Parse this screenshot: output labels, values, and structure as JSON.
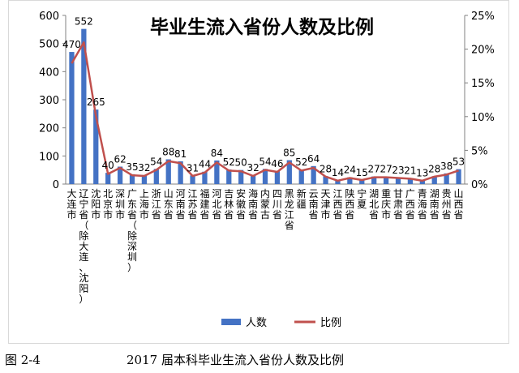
{
  "caption": {
    "figure_no": "图 2-4",
    "text": "2017 届本科毕业生流入省份人数及比例"
  },
  "chart_data": {
    "type": "bar",
    "title": "毕业生流入省份人数及比例",
    "xlabel": "",
    "ylabel": "",
    "ylim": [
      0,
      600
    ],
    "y_ticks": [
      "0",
      "100",
      "200",
      "300",
      "400",
      "500",
      "600"
    ],
    "y2lim": [
      0,
      25
    ],
    "y2_ticks": [
      "0%",
      "5%",
      "10%",
      "15%",
      "20%",
      "25%"
    ],
    "grid": false,
    "legend_position": "bottom",
    "categories": [
      "大连市",
      "辽宁省（除大连、沈阳）",
      "沈阳市",
      "北京市",
      "深圳市",
      "广东省（除深圳）",
      "上海市",
      "浙江省",
      "山东省",
      "河南省",
      "江苏省",
      "福建省",
      "河北省",
      "吉林省",
      "安徽省",
      "海南省",
      "内蒙古",
      "四川省",
      "黑龙江省",
      "新疆",
      "云南省",
      "天津市",
      "江西省",
      "陕西省",
      "宁夏",
      "湖北省",
      "重庆市",
      "甘肃省",
      "广西省",
      "青海省",
      "湖南省",
      "贵州省",
      "山西省"
    ],
    "category_display": [
      [
        "大",
        "连",
        "市"
      ],
      [
        "辽",
        "宁",
        "省",
        "（",
        "除",
        "大",
        "连",
        "、",
        "沈",
        "阳",
        "）"
      ],
      [
        "沈",
        "阳",
        "市"
      ],
      [
        "北",
        "京",
        "市"
      ],
      [
        "深",
        "圳",
        "市"
      ],
      [
        "广",
        "东",
        "省",
        "（",
        "除",
        "深",
        "圳",
        "）"
      ],
      [
        "上",
        "海",
        "市"
      ],
      [
        "浙",
        "江",
        "省"
      ],
      [
        "山",
        "东",
        "省"
      ],
      [
        "河",
        "南",
        "省"
      ],
      [
        "江",
        "苏",
        "省"
      ],
      [
        "福",
        "建",
        "省"
      ],
      [
        "河",
        "北",
        "省"
      ],
      [
        "吉",
        "林",
        "省"
      ],
      [
        "安",
        "徽",
        "省"
      ],
      [
        "海",
        "南",
        "省"
      ],
      [
        "内",
        "蒙",
        "古"
      ],
      [
        "四",
        "川",
        "省"
      ],
      [
        "黑",
        "龙",
        "江",
        "省"
      ],
      [
        "新",
        "疆"
      ],
      [
        "云",
        "南",
        "省"
      ],
      [
        "天",
        "津",
        "市"
      ],
      [
        "江",
        "西",
        "省"
      ],
      [
        "陕",
        "西",
        "省"
      ],
      [
        "宁",
        "夏"
      ],
      [
        "湖",
        "北",
        "省"
      ],
      [
        "重",
        "庆",
        "市"
      ],
      [
        "甘",
        "肃",
        "省"
      ],
      [
        "广",
        "西",
        "省"
      ],
      [
        "青",
        "海",
        "省"
      ],
      [
        "湖",
        "南",
        "省"
      ],
      [
        "贵",
        "州",
        "省"
      ],
      [
        "山",
        "西",
        "省"
      ]
    ],
    "series": [
      {
        "name": "人数",
        "type": "bar",
        "axis": "left",
        "color": "#4472c4",
        "values": [
          470,
          552,
          265,
          40,
          62,
          35,
          32,
          54,
          88,
          81,
          31,
          44,
          84,
          52,
          50,
          32,
          54,
          46,
          85,
          52,
          64,
          28,
          14,
          24,
          15,
          27,
          27,
          23,
          21,
          13,
          28,
          38,
          53
        ],
        "labels": [
          "470",
          "552",
          "265",
          "40",
          "62",
          "35",
          "32",
          "54",
          "88",
          "81",
          "31",
          "44",
          "84",
          "52",
          "50",
          "32",
          "54",
          "46",
          "85",
          "52",
          "64",
          "28",
          "14",
          "24",
          "15",
          "27",
          "27",
          "23",
          "21",
          "13",
          "28",
          "38",
          "53"
        ]
      },
      {
        "name": "比例",
        "type": "line",
        "axis": "right",
        "color": "#c0504d",
        "values": [
          17.9,
          21.0,
          10.1,
          1.5,
          2.4,
          1.3,
          1.2,
          2.1,
          3.4,
          3.1,
          1.2,
          1.7,
          3.2,
          2.0,
          1.9,
          1.2,
          2.1,
          1.8,
          3.2,
          2.0,
          2.4,
          1.1,
          0.5,
          0.9,
          0.6,
          1.0,
          1.0,
          0.9,
          0.8,
          0.5,
          1.1,
          1.4,
          2.0
        ]
      }
    ]
  }
}
